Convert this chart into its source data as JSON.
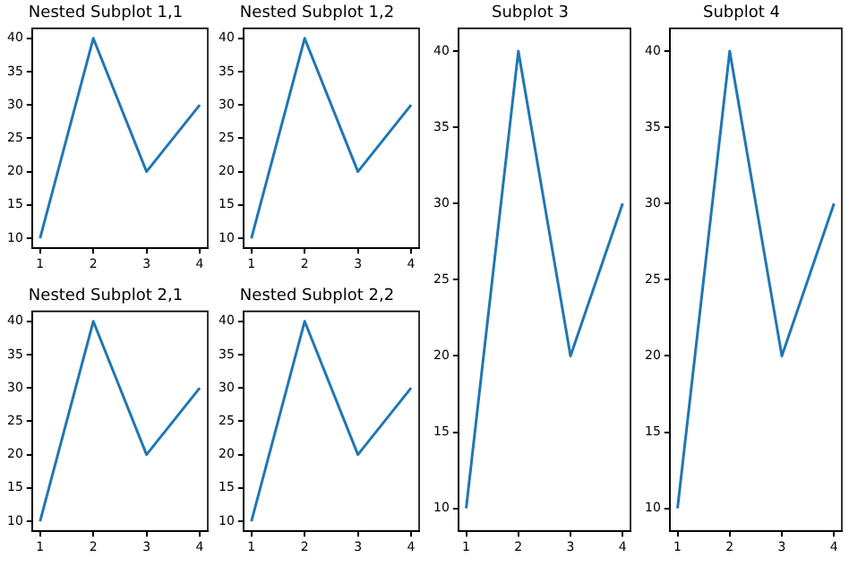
{
  "chart_data": [
    {
      "type": "line",
      "title": "Nested Subplot 1,1",
      "x": [
        1,
        2,
        3,
        4
      ],
      "series": [
        {
          "color": "#1f77b4",
          "values": [
            10,
            40,
            20,
            30
          ]
        }
      ],
      "xlim": [
        0.85,
        4.15
      ],
      "ylim": [
        8.5,
        41.5
      ],
      "xticks": [
        1,
        2,
        3,
        4
      ],
      "yticks": [
        10,
        15,
        20,
        25,
        30,
        35,
        40
      ],
      "grid": false,
      "legend": false,
      "marker": "none",
      "line_style": "solid"
    },
    {
      "type": "line",
      "title": "Nested Subplot 1,2",
      "x": [
        1,
        2,
        3,
        4
      ],
      "series": [
        {
          "color": "#1f77b4",
          "values": [
            10,
            40,
            20,
            30
          ]
        }
      ],
      "xlim": [
        0.85,
        4.15
      ],
      "ylim": [
        8.5,
        41.5
      ],
      "xticks": [
        1,
        2,
        3,
        4
      ],
      "yticks": [
        10,
        15,
        20,
        25,
        30,
        35,
        40
      ],
      "grid": false,
      "legend": false,
      "marker": "none",
      "line_style": "solid"
    },
    {
      "type": "line",
      "title": "Nested Subplot 2,1",
      "x": [
        1,
        2,
        3,
        4
      ],
      "series": [
        {
          "color": "#1f77b4",
          "values": [
            10,
            40,
            20,
            30
          ]
        }
      ],
      "xlim": [
        0.85,
        4.15
      ],
      "ylim": [
        8.5,
        41.5
      ],
      "xticks": [
        1,
        2,
        3,
        4
      ],
      "yticks": [
        10,
        15,
        20,
        25,
        30,
        35,
        40
      ],
      "grid": false,
      "legend": false,
      "marker": "none",
      "line_style": "solid"
    },
    {
      "type": "line",
      "title": "Nested Subplot 2,2",
      "x": [
        1,
        2,
        3,
        4
      ],
      "series": [
        {
          "color": "#1f77b4",
          "values": [
            10,
            40,
            20,
            30
          ]
        }
      ],
      "xlim": [
        0.85,
        4.15
      ],
      "ylim": [
        8.5,
        41.5
      ],
      "xticks": [
        1,
        2,
        3,
        4
      ],
      "yticks": [
        10,
        15,
        20,
        25,
        30,
        35,
        40
      ],
      "grid": false,
      "legend": false,
      "marker": "none",
      "line_style": "solid"
    },
    {
      "type": "line",
      "title": "Subplot 3",
      "x": [
        1,
        2,
        3,
        4
      ],
      "series": [
        {
          "color": "#1f77b4",
          "values": [
            10,
            40,
            20,
            30
          ]
        }
      ],
      "xlim": [
        0.85,
        4.15
      ],
      "ylim": [
        8.5,
        41.5
      ],
      "xticks": [
        1,
        2,
        3,
        4
      ],
      "yticks": [
        10,
        15,
        20,
        25,
        30,
        35,
        40
      ],
      "grid": false,
      "legend": false,
      "marker": "none",
      "line_style": "solid"
    },
    {
      "type": "line",
      "title": "Subplot 4",
      "x": [
        1,
        2,
        3,
        4
      ],
      "series": [
        {
          "color": "#1f77b4",
          "values": [
            10,
            40,
            20,
            30
          ]
        }
      ],
      "xlim": [
        0.85,
        4.15
      ],
      "ylim": [
        8.5,
        41.5
      ],
      "xticks": [
        1,
        2,
        3,
        4
      ],
      "yticks": [
        10,
        15,
        20,
        25,
        30,
        35,
        40
      ],
      "grid": false,
      "legend": false,
      "marker": "none",
      "line_style": "solid"
    }
  ]
}
